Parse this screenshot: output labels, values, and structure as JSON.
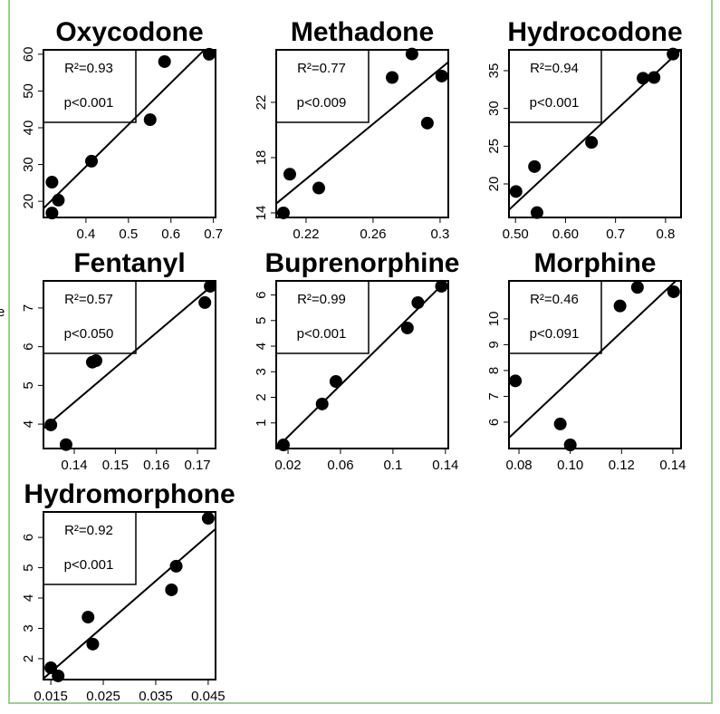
{
  "side_label": "e",
  "chart_data": [
    {
      "type": "scatter",
      "title": "Oxycodone",
      "annotations": [
        "R²=0.93",
        "p<0.001"
      ],
      "x": [
        0.32,
        0.335,
        0.32,
        0.413,
        0.551,
        0.585,
        0.69
      ],
      "values": [
        25.2,
        20.3,
        16.8,
        30.9,
        42.2,
        58,
        60
      ],
      "color": "#000000",
      "xlim": [
        0.3,
        0.705
      ],
      "ylim": [
        15.6,
        61.2
      ],
      "xticks": [
        0.4,
        0.5,
        0.6,
        0.7
      ],
      "yticks": [
        20,
        30,
        40,
        50,
        60
      ]
    },
    {
      "type": "scatter",
      "title": "Methadone",
      "annotations": [
        "R²=0.77",
        "p<0.009"
      ],
      "x": [
        0.2065,
        0.2103,
        0.2276,
        0.2714,
        0.2832,
        0.2924,
        0.301
      ],
      "values": [
        14.0,
        16.8,
        15.8,
        23.8,
        25.5,
        20.5,
        23.9
      ],
      "color": "#000000",
      "xlim": [
        0.2022,
        0.3049
      ],
      "ylim": [
        13.67,
        25.8
      ],
      "xticks": [
        0.22,
        0.26,
        0.3
      ],
      "yticks": [
        14,
        18,
        22
      ]
    },
    {
      "type": "scatter",
      "title": "Hydrocodone",
      "annotations": [
        "R²=0.94",
        "p<0.001"
      ],
      "x": [
        0.501,
        0.538,
        0.543,
        0.652,
        0.755,
        0.777,
        0.815
      ],
      "values": [
        19.0,
        22.3,
        16.2,
        25.5,
        34.0,
        34.1,
        37.2
      ],
      "color": "#000000",
      "xlim": [
        0.487,
        0.831
      ],
      "ylim": [
        15.56,
        37.76
      ],
      "xticks": [
        {
          "value": 0.5,
          "label": "0.50"
        },
        {
          "value": 0.6,
          "label": "0.60"
        },
        0.7,
        0.8
      ],
      "yticks": [
        20,
        25,
        30,
        35
      ]
    },
    {
      "type": "scatter",
      "title": "Fentanyl",
      "annotations": [
        "R²=0.57",
        "p<0.050"
      ],
      "x": [
        0.1343,
        0.138,
        0.1444,
        0.1453,
        0.1718,
        0.1731
      ],
      "values": [
        3.98,
        3.47,
        5.6,
        5.64,
        7.14,
        7.56
      ],
      "color": "#000000",
      "xlim": [
        0.1325,
        0.1744
      ],
      "ylim": [
        3.37,
        7.7
      ],
      "xticks": [
        0.14,
        0.15,
        0.16,
        0.17
      ],
      "yticks": [
        4,
        5,
        6,
        7
      ]
    },
    {
      "type": "scatter",
      "title": "Buprenorphine",
      "annotations": [
        "R²=0.99",
        "p<0.001"
      ],
      "x": [
        0.0165,
        0.046,
        0.0565,
        0.111,
        0.119,
        0.137
      ],
      "values": [
        0.14,
        1.74,
        2.62,
        4.71,
        5.7,
        6.34
      ],
      "color": "#000000",
      "xlim": [
        0.011,
        0.1422
      ],
      "ylim": [
        0,
        6.55
      ],
      "xticks": [
        0.02,
        0.06,
        0.1,
        0.14
      ],
      "yticks": [
        1,
        2,
        3,
        4,
        5,
        6
      ]
    },
    {
      "type": "scatter",
      "title": "Morphine",
      "annotations": [
        "R²=0.46",
        "p<0.091"
      ],
      "x": [
        0.0786,
        0.0961,
        0.1,
        0.1194,
        0.1262,
        0.1403
      ],
      "values": [
        7.6,
        5.93,
        5.12,
        10.5,
        11.22,
        11.05
      ],
      "color": "#000000",
      "xlim": [
        0.0761,
        0.1432
      ],
      "ylim": [
        4.98,
        11.47
      ],
      "xticks": [
        0.08,
        {
          "value": 0.1,
          "label": "0.10"
        },
        0.12,
        0.14
      ],
      "yticks": [
        6,
        7,
        8,
        9,
        10
      ]
    },
    {
      "type": "scatter",
      "title": "Hydromorphone",
      "annotations": [
        "R²=0.92",
        "p<0.001"
      ],
      "x": [
        0.015,
        0.0164,
        0.0221,
        0.023,
        0.038,
        0.0389,
        0.045
      ],
      "values": [
        1.7,
        1.43,
        3.37,
        2.48,
        4.27,
        5.05,
        6.63
      ],
      "color": "#000000",
      "xlim": [
        0.0136,
        0.0464
      ],
      "ylim": [
        1.31,
        6.84
      ],
      "xticks": [
        0.015,
        0.025,
        0.035,
        0.045
      ],
      "yticks": [
        2,
        3,
        4,
        5,
        6
      ]
    }
  ]
}
